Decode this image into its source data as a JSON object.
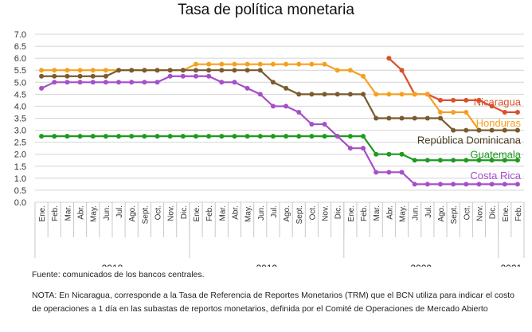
{
  "chart_data": {
    "type": "line",
    "title": "Tasa de política monetaria",
    "xlabel": "",
    "ylabel": "",
    "ylim": [
      0,
      7
    ],
    "yticks": [
      "0.0",
      "0.5",
      "1.0",
      "1.5",
      "2.0",
      "2.5",
      "3.0",
      "3.5",
      "4.0",
      "4.5",
      "5.0",
      "5.5",
      "6.0",
      "6.5",
      "7.0"
    ],
    "grid": true,
    "x": [
      "Ene.",
      "Feb.",
      "Mar.",
      "Abr.",
      "May.",
      "Jun.",
      "Jul.",
      "Ago.",
      "Sept.",
      "Oct.",
      "Nov.",
      "Dic.",
      "Ene.",
      "Feb.",
      "Mar.",
      "Abr.",
      "May.",
      "Jun.",
      "Jul.",
      "Ago.",
      "Sept.",
      "Oct.",
      "Nov.",
      "Dic.",
      "Ene.",
      "Feb.",
      "Mar.",
      "Abr.",
      "May.",
      "Jun.",
      "Jul.",
      "Ago.",
      "Sept.",
      "Oct.",
      "Nov.",
      "Dic.",
      "Ene.",
      "Feb."
    ],
    "year_groups": [
      {
        "label": "2018",
        "months": 12
      },
      {
        "label": "2019",
        "months": 12
      },
      {
        "label": "2020",
        "months": 12
      },
      {
        "label": "2021",
        "months": 2
      }
    ],
    "series": [
      {
        "name": "Nicaragua",
        "color": "#d9502b",
        "values": [
          null,
          null,
          null,
          null,
          null,
          null,
          null,
          null,
          null,
          null,
          null,
          null,
          null,
          null,
          null,
          null,
          null,
          null,
          null,
          null,
          null,
          null,
          null,
          null,
          null,
          null,
          null,
          6.0,
          5.5,
          4.5,
          4.5,
          4.25,
          4.25,
          4.25,
          4.25,
          4.0,
          3.75,
          3.75
        ]
      },
      {
        "name": "Honduras",
        "color": "#f5a020",
        "values": [
          5.5,
          5.5,
          5.5,
          5.5,
          5.5,
          5.5,
          5.5,
          5.5,
          5.5,
          5.5,
          5.5,
          5.5,
          5.75,
          5.75,
          5.75,
          5.75,
          5.75,
          5.75,
          5.75,
          5.75,
          5.75,
          5.75,
          5.75,
          5.5,
          5.5,
          5.25,
          4.5,
          4.5,
          4.5,
          4.5,
          4.5,
          3.75,
          3.75,
          3.75,
          3.0,
          3.0,
          3.0,
          3.0
        ]
      },
      {
        "name": "República Dominicana",
        "color": "#7a5a2e",
        "values": [
          5.25,
          5.25,
          5.25,
          5.25,
          5.25,
          5.25,
          5.5,
          5.5,
          5.5,
          5.5,
          5.5,
          5.5,
          5.5,
          5.5,
          5.5,
          5.5,
          5.5,
          5.5,
          5.0,
          4.75,
          4.5,
          4.5,
          4.5,
          4.5,
          4.5,
          4.5,
          3.5,
          3.5,
          3.5,
          3.5,
          3.5,
          3.5,
          3.0,
          3.0,
          3.0,
          3.0,
          3.0,
          3.0
        ]
      },
      {
        "name": "Guatemala",
        "color": "#1e9a1e",
        "values": [
          2.75,
          2.75,
          2.75,
          2.75,
          2.75,
          2.75,
          2.75,
          2.75,
          2.75,
          2.75,
          2.75,
          2.75,
          2.75,
          2.75,
          2.75,
          2.75,
          2.75,
          2.75,
          2.75,
          2.75,
          2.75,
          2.75,
          2.75,
          2.75,
          2.75,
          2.75,
          2.0,
          2.0,
          2.0,
          1.75,
          1.75,
          1.75,
          1.75,
          1.75,
          1.75,
          1.75,
          1.75,
          1.75
        ]
      },
      {
        "name": "Costa Rica",
        "color": "#a64fc8",
        "values": [
          4.75,
          5.0,
          5.0,
          5.0,
          5.0,
          5.0,
          5.0,
          5.0,
          5.0,
          5.0,
          5.25,
          5.25,
          5.25,
          5.25,
          5.0,
          5.0,
          4.75,
          4.5,
          4.0,
          4.0,
          3.75,
          3.25,
          3.25,
          2.75,
          2.25,
          2.25,
          1.25,
          1.25,
          1.25,
          0.75,
          0.75,
          0.75,
          0.75,
          0.75,
          0.75,
          0.75,
          0.75,
          0.75
        ]
      }
    ]
  },
  "footer": {
    "source": "Fuente: comunicados de los bancos centrales.",
    "note": "NOTA: En Nicaragua, corresponde a la Tasa de Referencia de Reportes Monetarios (TRM) que el BCN utiliza para indicar el costo de operaciones a 1 día en las subastas de reportos monetarios, definida por el Comité de Operaciones de Mercado Abierto"
  }
}
